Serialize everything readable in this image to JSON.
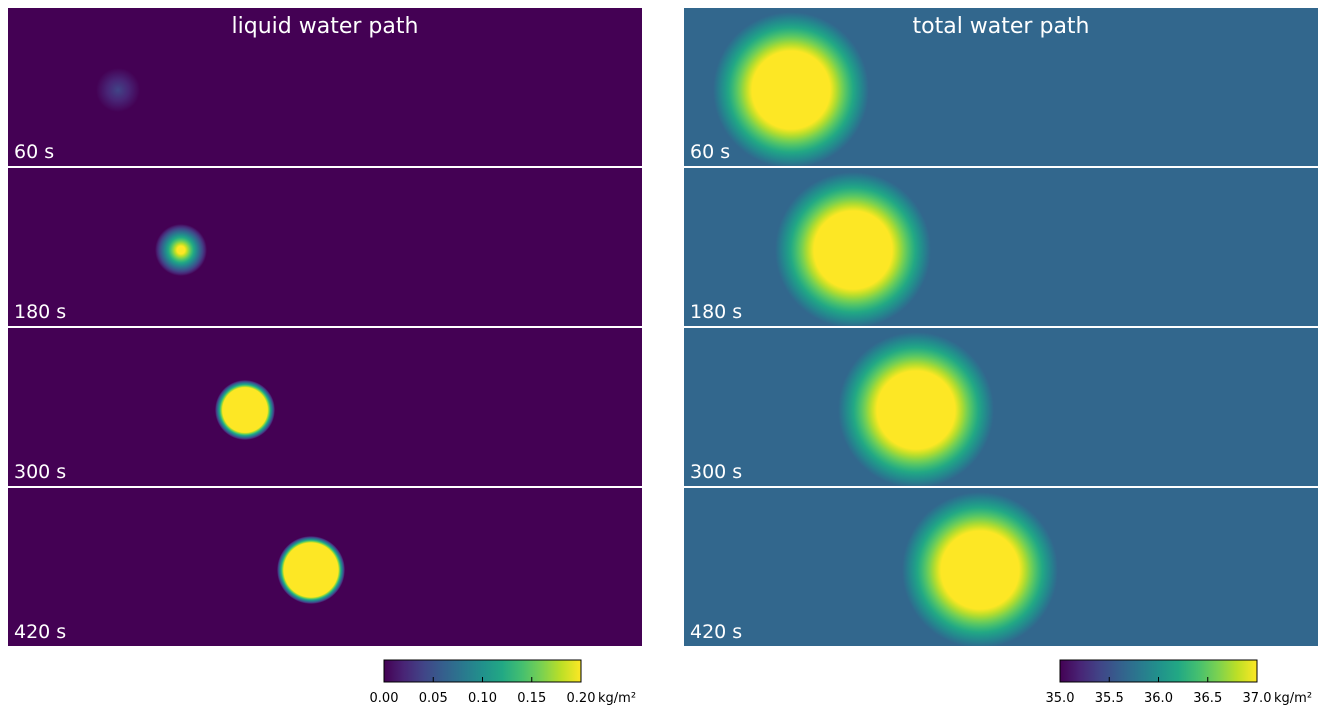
{
  "chart_data": [
    {
      "type": "image-panels",
      "title": "liquid water path",
      "panels": [
        "60 s",
        "180 s",
        "300 s",
        "420 s"
      ],
      "colormap": "viridis",
      "colorbar_label": "kg/m²",
      "clim": [
        0,
        0.2
      ],
      "cticks": [
        {
          "value": 0,
          "label": "0.00"
        },
        {
          "value": 0.05,
          "label": "0.05"
        },
        {
          "value": 0.1,
          "label": "0.10"
        },
        {
          "value": 0.15,
          "label": "0.15"
        },
        {
          "value": 0.2,
          "label": "0.20"
        }
      ]
    },
    {
      "type": "image-panels",
      "title": "total water path",
      "panels": [
        "60 s",
        "180 s",
        "300 s",
        "420 s"
      ],
      "colormap": "viridis",
      "colorbar_label": "kg/m²",
      "clim": [
        35,
        37
      ],
      "cticks": [
        {
          "value": 35,
          "label": "35.0"
        },
        {
          "value": 35.5,
          "label": "35.5"
        },
        {
          "value": 36,
          "label": "36.0"
        },
        {
          "value": 36.5,
          "label": "36.5"
        },
        {
          "value": 37,
          "label": "37.0"
        }
      ]
    }
  ]
}
